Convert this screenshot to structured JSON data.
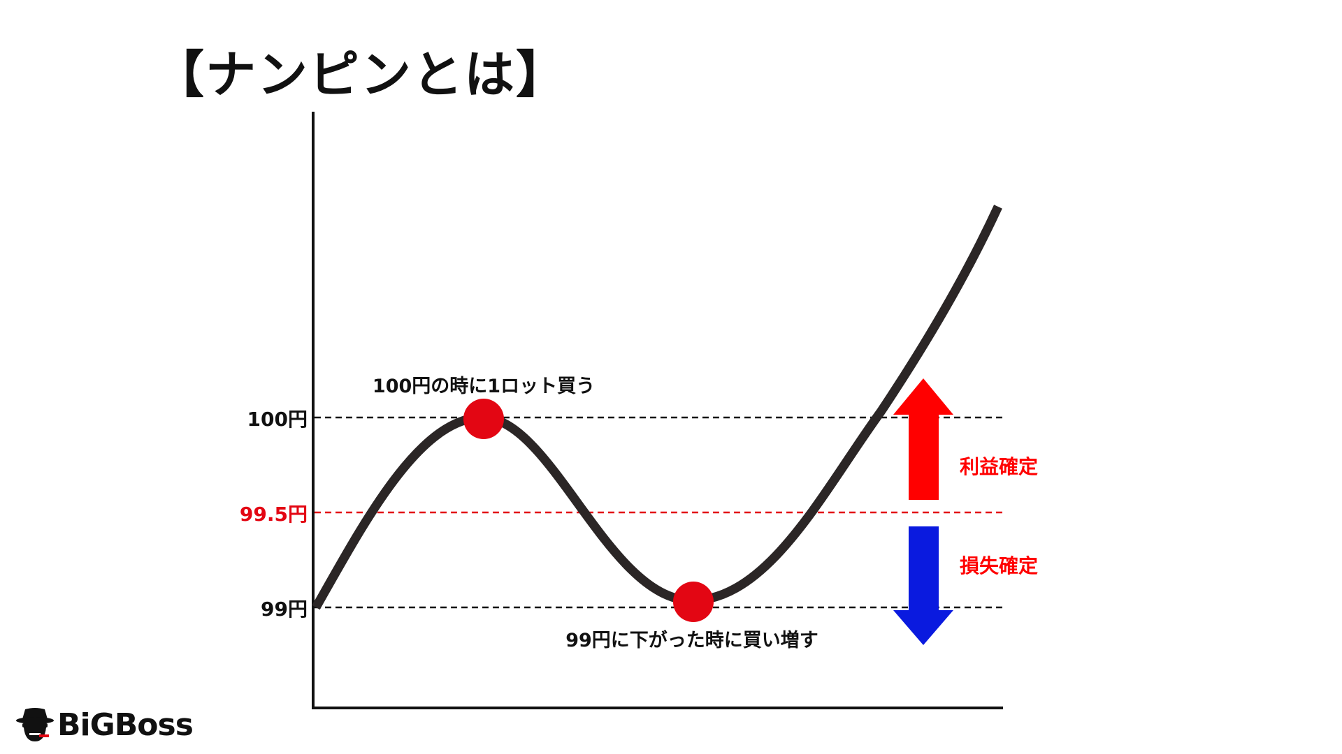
{
  "title": "【ナンピンとは】",
  "levels": {
    "high": "100円",
    "mid": "99.5円",
    "low": "99円"
  },
  "annotations": {
    "buy_first": "100円の時に1ロット買う",
    "buy_more": "99円に下がった時に買い増す",
    "profit": "利益確定",
    "loss": "損失確定"
  },
  "colors": {
    "curve": "#2b2626",
    "dot": "#e30613",
    "profit": "#ff0000",
    "loss": "#0a1adf",
    "mid_line": "#e30613",
    "text": "#111111"
  },
  "logo": {
    "text": "BiGBoss",
    "icon": "hat-man-icon"
  }
}
